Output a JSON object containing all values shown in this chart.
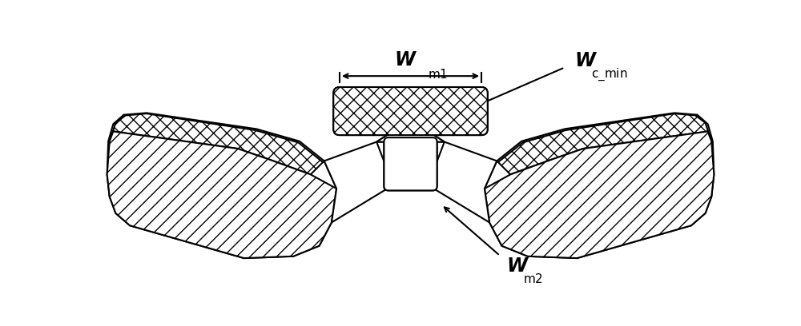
{
  "bg_color": "#ffffff",
  "line_color": "#000000",
  "linewidth": 1.5,
  "figsize": [
    10.0,
    4.08
  ],
  "dpi": 100
}
